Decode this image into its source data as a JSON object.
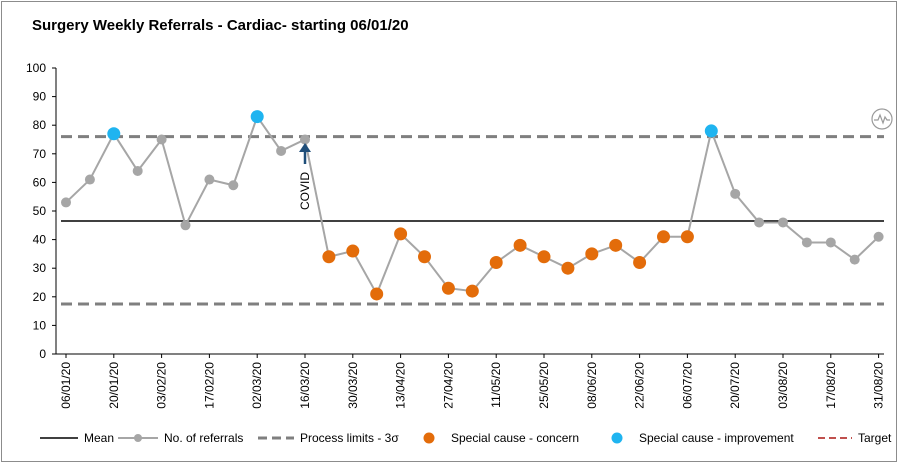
{
  "chart_data": {
    "type": "line",
    "title": "Surgery Weekly Referrals - Cardiac- starting 06/01/20",
    "xlabel": "",
    "ylabel": "",
    "ylim": [
      0,
      100
    ],
    "yticks": [
      0,
      10,
      20,
      30,
      40,
      50,
      60,
      70,
      80,
      90,
      100
    ],
    "x": [
      "06/01/20",
      "13/01/20",
      "20/01/20",
      "27/01/20",
      "03/02/20",
      "10/02/20",
      "17/02/20",
      "24/02/20",
      "02/03/20",
      "09/03/20",
      "16/03/20",
      "23/03/20",
      "30/03/20",
      "06/04/20",
      "13/04/20",
      "20/04/20",
      "27/04/20",
      "04/05/20",
      "11/05/20",
      "18/05/20",
      "25/05/20",
      "01/06/20",
      "08/06/20",
      "15/06/20",
      "22/06/20",
      "29/06/20",
      "06/07/20",
      "13/07/20",
      "20/07/20",
      "27/07/20",
      "03/08/20",
      "10/08/20",
      "17/08/20",
      "24/08/20",
      "31/08/20"
    ],
    "x_tick_labels": [
      "06/01/20",
      "20/01/20",
      "03/02/20",
      "17/02/20",
      "02/03/20",
      "16/03/20",
      "30/03/20",
      "13/04/20",
      "27/04/20",
      "11/05/20",
      "25/05/20",
      "08/06/20",
      "22/06/20",
      "06/07/20",
      "20/07/20",
      "03/08/20",
      "17/08/20",
      "31/08/20"
    ],
    "series": [
      {
        "name": "No. of referrals",
        "color": "#a6a6a6",
        "values": [
          53,
          61,
          77,
          64,
          75,
          45,
          61,
          59,
          83,
          71,
          75,
          34,
          36,
          21,
          42,
          34,
          23,
          22,
          32,
          38,
          34,
          30,
          35,
          38,
          32,
          41,
          41,
          78,
          56,
          46,
          46,
          39,
          39,
          33,
          41
        ]
      }
    ],
    "mean": 46.5,
    "upper_limit": 76,
    "lower_limit": 17.5,
    "concern_points": [
      11,
      12,
      13,
      14,
      15,
      16,
      17,
      18,
      19,
      20,
      21,
      22,
      23,
      24,
      25,
      26
    ],
    "improvement_points": [
      2,
      8,
      27
    ],
    "annotations": [
      {
        "text": "COVID",
        "at": "16/03/20"
      }
    ],
    "legend": [
      {
        "label": "Mean",
        "style": "solid-black"
      },
      {
        "label": "No. of referrals",
        "style": "grey-line-marker"
      },
      {
        "label": "Process limits - 3σ",
        "style": "grey-dashed"
      },
      {
        "label": "Special cause - concern",
        "style": "orange-dot"
      },
      {
        "label": "Special cause  - improvement",
        "style": "blue-dot"
      },
      {
        "label": "Target",
        "style": "red-dashed"
      }
    ],
    "legend_position": "bottom",
    "grid": false,
    "colors": {
      "mean": "#000000",
      "line": "#a6a6a6",
      "limits": "#7f7f7f",
      "concern": "#e36c0a",
      "improvement": "#1fb4f0",
      "target": "#c0504d",
      "arrow": "#1f4e79"
    }
  }
}
